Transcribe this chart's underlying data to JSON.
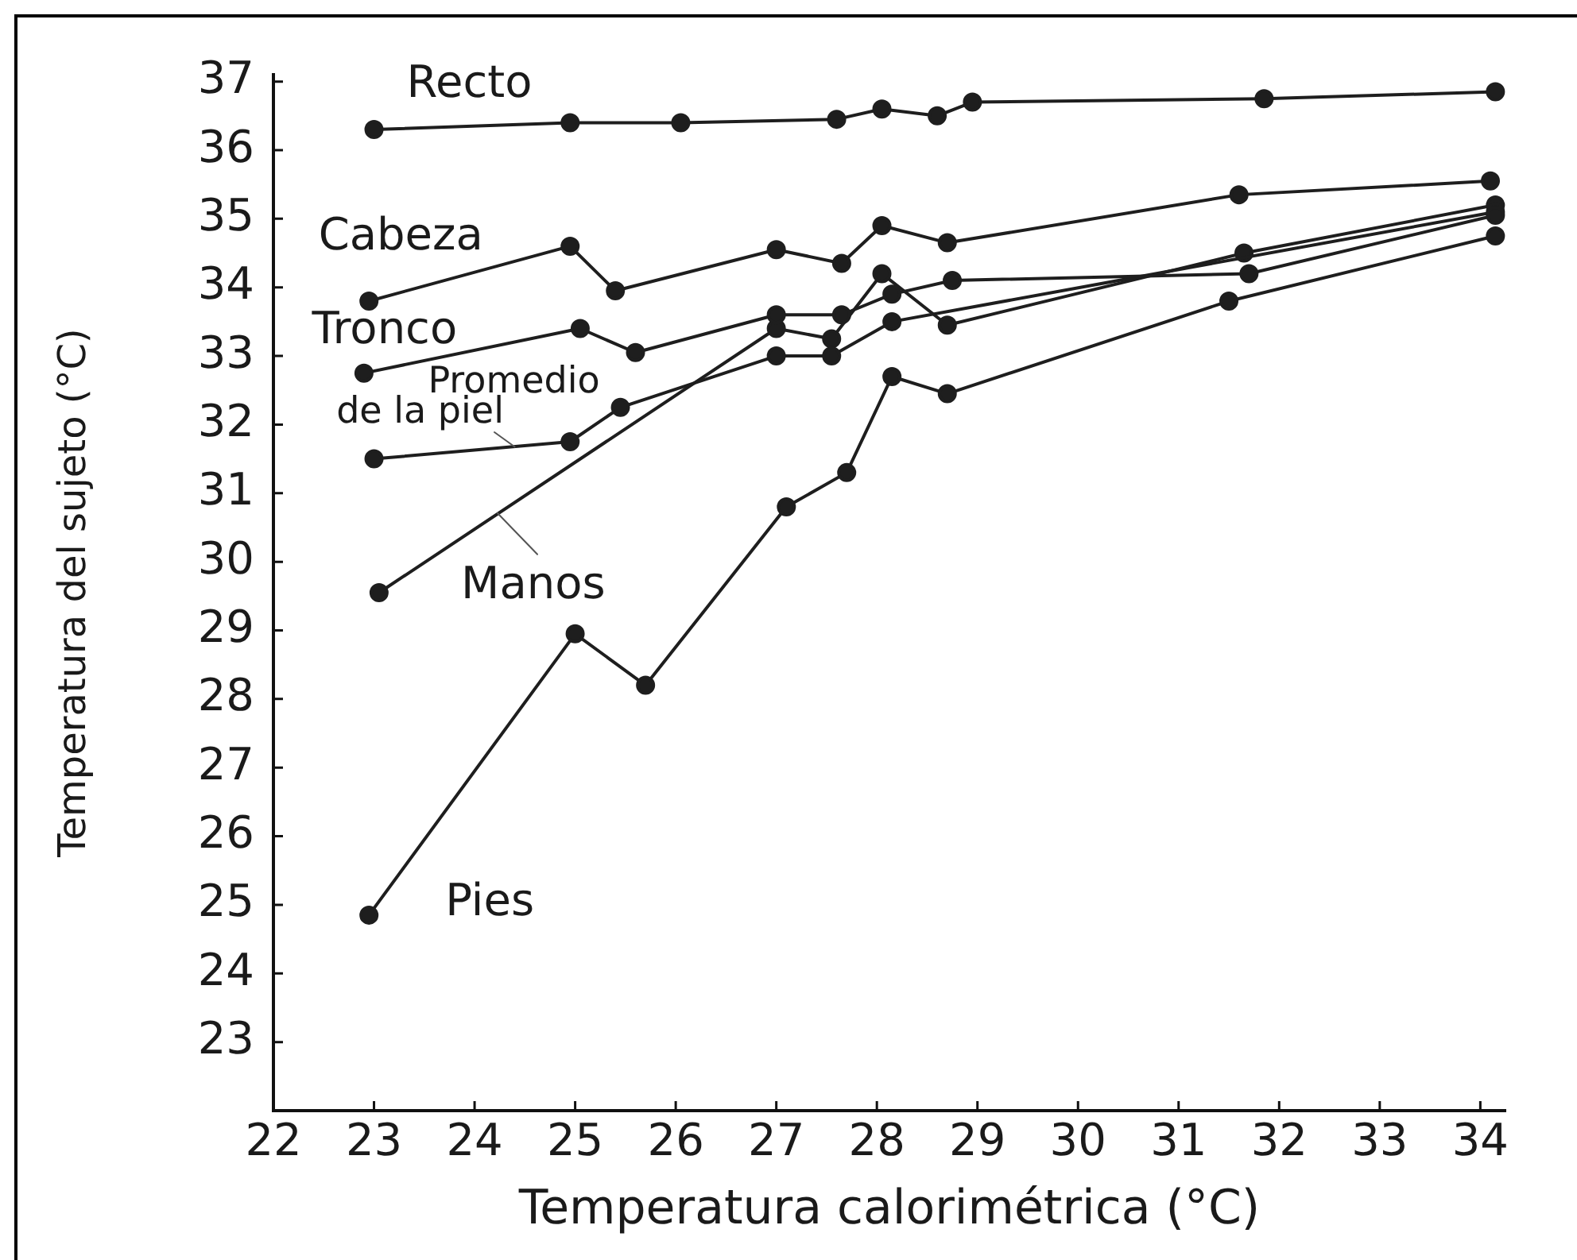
{
  "chart_data": {
    "type": "line",
    "xlabel": "Temperatura calorimétrica (°C)",
    "ylabel": "Temperatura del sujeto (°C)",
    "xlim": [
      22,
      34.25
    ],
    "ylim": [
      22,
      37.1
    ],
    "xticks": [
      22,
      23,
      24,
      25,
      26,
      27,
      28,
      29,
      30,
      31,
      32,
      33,
      34
    ],
    "yticks": [
      23,
      24,
      25,
      26,
      27,
      28,
      29,
      30,
      31,
      32,
      33,
      34,
      35,
      36,
      37
    ],
    "grid": false,
    "legend": false,
    "marker": "circle",
    "line_style": "solid",
    "series": [
      {
        "name": "Recto",
        "color": "#1e1e1e",
        "x": [
          23.0,
          24.95,
          26.05,
          27.6,
          28.05,
          28.6,
          28.95,
          31.85,
          34.15
        ],
        "values": [
          36.3,
          36.4,
          36.4,
          36.45,
          36.6,
          36.5,
          36.7,
          36.75,
          36.85
        ]
      },
      {
        "name": "Cabeza",
        "color": "#1e1e1e",
        "x": [
          22.95,
          24.95,
          25.4,
          27.0,
          27.65,
          28.05,
          28.7,
          31.6,
          34.1
        ],
        "values": [
          33.8,
          34.6,
          33.95,
          34.55,
          34.35,
          34.9,
          34.65,
          35.35,
          35.55
        ]
      },
      {
        "name": "Tronco",
        "color": "#1e1e1e",
        "x": [
          22.9,
          25.05,
          25.6,
          27.0,
          27.65,
          28.15,
          28.75,
          31.7,
          34.15
        ],
        "values": [
          32.75,
          33.4,
          33.05,
          33.6,
          33.6,
          33.9,
          34.1,
          34.2,
          35.05
        ]
      },
      {
        "name": "Promedio de la piel",
        "color": "#1e1e1e",
        "x": [
          23.0,
          24.95,
          25.45,
          27.0,
          27.55,
          28.15,
          34.15
        ],
        "values": [
          31.5,
          31.75,
          32.25,
          33.0,
          33.0,
          33.5,
          35.1
        ]
      },
      {
        "name": "Manos",
        "color": "#1e1e1e",
        "x": [
          23.05,
          27.0,
          27.55,
          28.05,
          28.7,
          31.65,
          34.15
        ],
        "values": [
          29.55,
          33.4,
          33.25,
          34.2,
          33.45,
          34.5,
          35.2
        ]
      },
      {
        "name": "Pies",
        "color": "#1e1e1e",
        "x": [
          22.95,
          25.0,
          25.7,
          27.1,
          27.7,
          28.15,
          28.7,
          31.5,
          34.15
        ],
        "values": [
          24.85,
          28.95,
          28.2,
          30.8,
          31.3,
          32.7,
          32.45,
          33.8,
          34.75
        ]
      }
    ]
  }
}
